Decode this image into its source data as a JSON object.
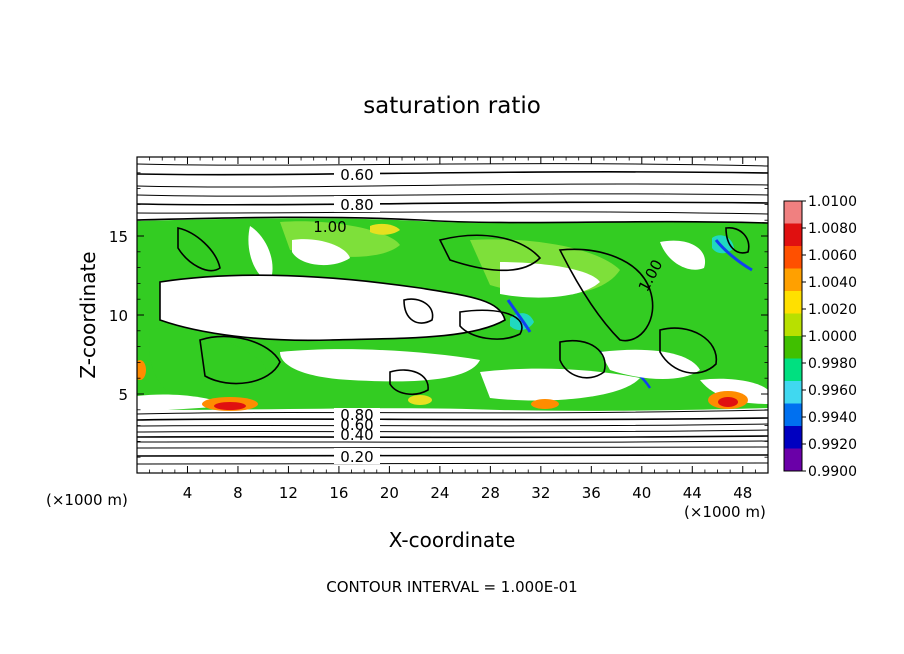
{
  "chart_data": {
    "type": "heatmap",
    "title": "saturation ratio",
    "xlabel": "X-coordinate",
    "ylabel": "Z-coordinate",
    "x_unit": "(×1000 m)",
    "y_unit": "(×1000 m)",
    "xlim": [
      0,
      50
    ],
    "ylim": [
      0,
      20
    ],
    "x_ticks": [
      "4",
      "8",
      "12",
      "16",
      "20",
      "24",
      "28",
      "32",
      "36",
      "40",
      "44",
      "48"
    ],
    "y_ticks": [
      "5",
      "10",
      "15"
    ],
    "contour_interval_text": "CONTOUR INTERVAL = 1.000E-01",
    "contour_labels": [
      "0.60",
      "0.80",
      "1.00",
      "1.00",
      "0.80",
      "0.60",
      "0.40",
      "0.20"
    ],
    "colorbar": {
      "ticks": [
        "1.0100",
        "1.0080",
        "1.0060",
        "1.0040",
        "1.0020",
        "1.0000",
        "0.9980",
        "0.9960",
        "0.9940",
        "0.9920",
        "0.9900"
      ],
      "colors": [
        "#f08080",
        "#e01010",
        "#ff5000",
        "#ffa000",
        "#ffe000",
        "#b8e000",
        "#40c000",
        "#00e080",
        "#40d8f0",
        "#0070f0",
        "#0000c0",
        "#6a00a8"
      ]
    },
    "fill_colors": {
      "green": "#33cc22",
      "light_green": "#7ee03a",
      "yellow": "#e8e020",
      "orange": "#ff8c00",
      "red": "#e01010",
      "cyan": "#20d8c0",
      "blue": "#1040f0"
    }
  }
}
